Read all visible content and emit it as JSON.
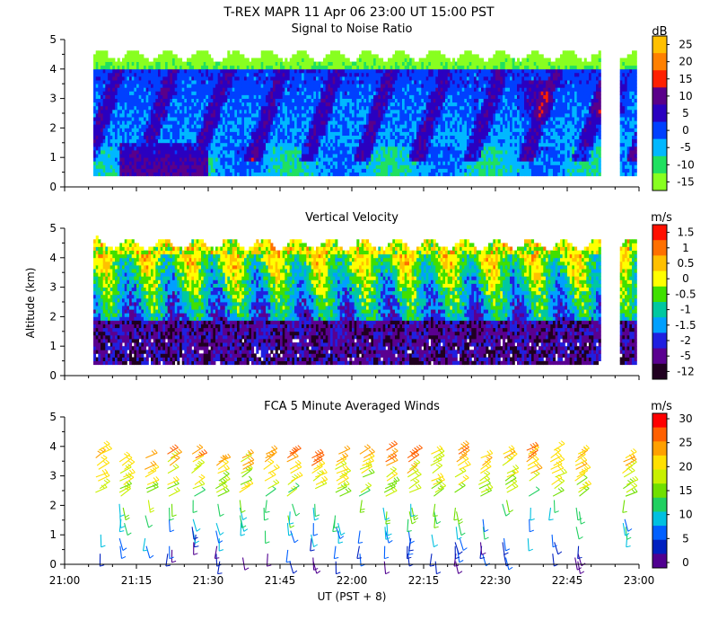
{
  "header": {
    "title": "T-REX   MAPR 11 Apr 06   23:00 UT   15:00   PST"
  },
  "x_axis": {
    "label": "UT  (PST + 8)",
    "ticks": [
      "21:00",
      "21:15",
      "21:30",
      "21:45",
      "22:00",
      "22:15",
      "22:30",
      "22:45",
      "23:00"
    ]
  },
  "chart_data": [
    {
      "type": "heatmap",
      "title": "Signal to Noise Ratio",
      "ylabel": "",
      "yticks": [
        "0",
        "1",
        "2",
        "3",
        "4",
        "5"
      ],
      "ylim": [
        0,
        5
      ],
      "xlim_minutes": [
        0,
        120
      ],
      "data_gap_minutes": [
        112,
        116
      ],
      "colorbar": {
        "unit": "dB",
        "labels": [
          "25",
          "20",
          "15",
          "10",
          "5",
          "0",
          "-5",
          "-10",
          "-15"
        ],
        "colors": [
          "#ffc000",
          "#ff8000",
          "#ff2000",
          "#5a008a",
          "#2a00c0",
          "#0040ff",
          "#00b8ff",
          "#20e060",
          "#88ff20"
        ]
      }
    },
    {
      "type": "heatmap",
      "title": "Vertical Velocity",
      "ylabel": "Altitude (km)",
      "yticks": [
        "0",
        "1",
        "2",
        "3",
        "4",
        "5"
      ],
      "ylim": [
        0,
        5
      ],
      "xlim_minutes": [
        0,
        120
      ],
      "data_gap_minutes": [
        112,
        116
      ],
      "colorbar": {
        "unit": "m/s",
        "labels": [
          "1.5",
          "1",
          "0.5",
          "0",
          "-0.5",
          "-1",
          "-1.5",
          "-2",
          "-5",
          "-12"
        ],
        "colors": [
          "#ff1000",
          "#ff7000",
          "#ffc000",
          "#ffff00",
          "#40e000",
          "#00c8a0",
          "#00a0ff",
          "#2020e0",
          "#5a0090",
          "#200020"
        ]
      }
    },
    {
      "type": "scatter",
      "title": "FCA 5 Minute Averaged Winds",
      "ylabel": "",
      "yticks": [
        "0",
        "1",
        "2",
        "3",
        "4",
        "5"
      ],
      "ylim": [
        0,
        5
      ],
      "xlim_minutes": [
        0,
        120
      ],
      "colorbar": {
        "unit": "m/s",
        "labels": [
          "30",
          "25",
          "20",
          "15",
          "10",
          "5",
          "0"
        ],
        "colors": [
          "#ff0000",
          "#ff6000",
          "#ffa000",
          "#ffe000",
          "#c8f000",
          "#70e000",
          "#20d060",
          "#00c0e0",
          "#0060ff",
          "#0020c0",
          "#500090"
        ]
      }
    }
  ]
}
